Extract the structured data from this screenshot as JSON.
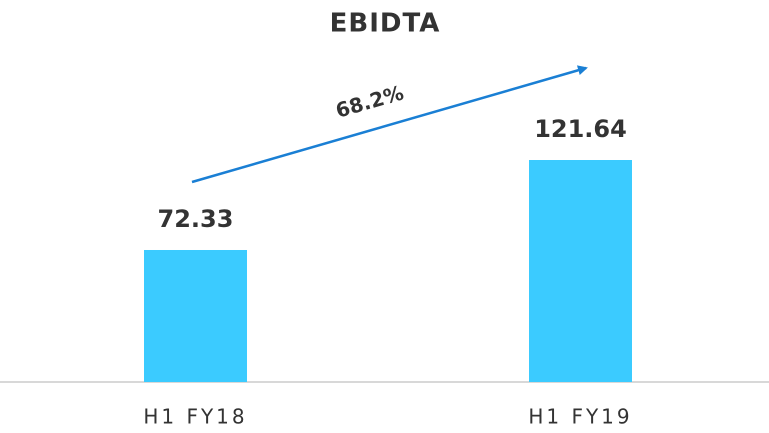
{
  "chart_data": {
    "type": "bar",
    "title": "EBIDTA",
    "categories": [
      "H1 FY18",
      "H1 FY19"
    ],
    "values": [
      72.33,
      121.64
    ],
    "color": "#3bcbff",
    "annotation": "68.2%",
    "annotation_color": "#1a7fd4"
  }
}
